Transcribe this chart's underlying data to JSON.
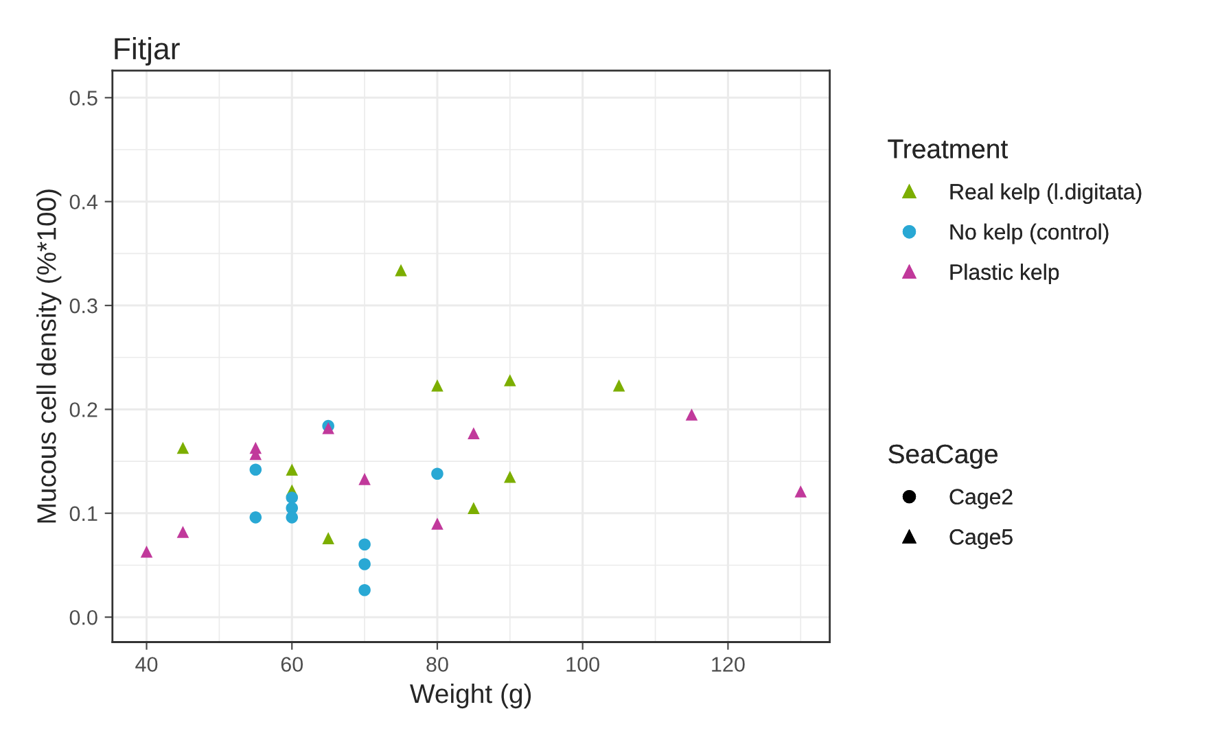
{
  "chart_data": {
    "type": "scatter",
    "title": "Fitjar",
    "xlabel": "Weight (g)",
    "ylabel": "Mucous cell density (%*100)",
    "legend_title": [
      "Treatment",
      "SeaCage"
    ],
    "xlim": [
      35.3,
      134
    ],
    "xticks": [
      40,
      60,
      80,
      100,
      120
    ],
    "ylim": [
      -0.024,
      0.526
    ],
    "yticks": [
      {
        "value": 0,
        "label": "0.0"
      },
      {
        "value": 0.1,
        "label": "0.1"
      },
      {
        "value": 0.2,
        "label": "0.2"
      },
      {
        "value": 0.3,
        "label": "0.3"
      },
      {
        "value": 0.4,
        "label": "0.4"
      },
      {
        "value": 0.5,
        "label": "0.5"
      }
    ],
    "grid": true,
    "legend": "right",
    "series": [
      {
        "name": "Real kelp (l.digitata)",
        "color": "#7cae00",
        "marker": "triangle",
        "x": [
          45,
          60,
          60,
          65,
          75,
          80,
          85,
          90,
          90,
          105
        ],
        "values": [
          0.163,
          0.142,
          0.122,
          0.076,
          0.334,
          0.223,
          0.105,
          0.228,
          0.135,
          0.223
        ]
      },
      {
        "name": "No kelp (control)",
        "color": "#29a8d4",
        "marker": "circle",
        "x": [
          55,
          55,
          60,
          60,
          60,
          65,
          70,
          70,
          70,
          80
        ],
        "values": [
          0.142,
          0.096,
          0.115,
          0.105,
          0.096,
          0.184,
          0.07,
          0.051,
          0.026,
          0.138
        ]
      },
      {
        "name": "Plastic kelp",
        "color": "#c1399b",
        "marker": "triangle",
        "x": [
          40,
          45,
          55,
          55,
          65,
          70,
          80,
          85,
          115,
          130
        ],
        "values": [
          0.063,
          0.082,
          0.163,
          0.157,
          0.182,
          0.133,
          0.09,
          0.177,
          0.195,
          0.121
        ]
      },
      {
        "name": "Cage2",
        "color": "#000000",
        "marker": "circle"
      },
      {
        "name": "Cage5",
        "color": "#000000",
        "marker": "triangle"
      }
    ]
  }
}
